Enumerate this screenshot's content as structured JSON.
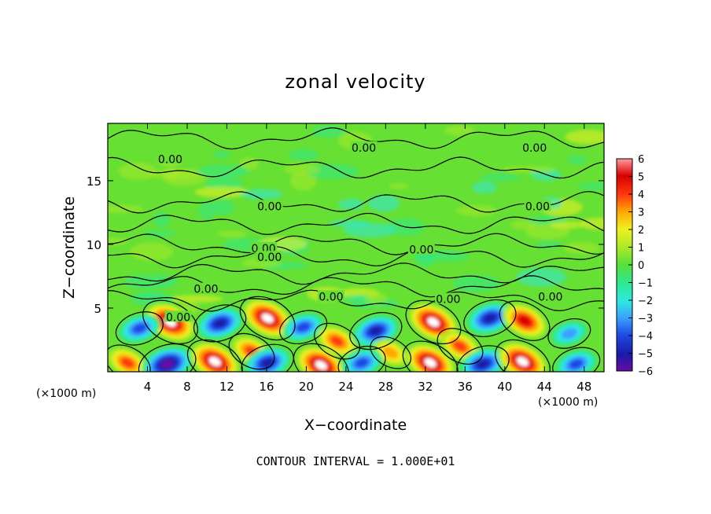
{
  "chart_data": {
    "type": "heatmap",
    "title": "zonal velocity",
    "xlabel": "X−coordinate",
    "ylabel": "Z−coordinate",
    "x_unit_left": "(×1000 m)",
    "x_unit_right": "(×1000 m)",
    "footer": "CONTOUR INTERVAL = 1.000E+01",
    "xlim": [
      0,
      50
    ],
    "ylim": [
      0,
      19.5
    ],
    "x_ticks": [
      4,
      8,
      12,
      16,
      20,
      24,
      28,
      32,
      36,
      40,
      44,
      48
    ],
    "y_ticks": [
      5,
      10,
      15
    ],
    "colorbar": {
      "range": [
        -6,
        6
      ],
      "ticks": [
        6,
        5,
        4,
        3,
        2,
        1,
        0,
        -1,
        -2,
        -3,
        -4,
        -5,
        -6
      ],
      "tick_labels": [
        "6",
        "5",
        "4",
        "3",
        "2",
        "1",
        "0",
        "−1",
        "−2",
        "−3",
        "−4",
        "−5",
        "−6"
      ]
    },
    "contour_labels": [
      {
        "text": "0.00",
        "x": 6.3,
        "z": 16.7
      },
      {
        "text": "0.00",
        "x": 25.8,
        "z": 17.6
      },
      {
        "text": "0.00",
        "x": 43.0,
        "z": 17.6
      },
      {
        "text": "0.00",
        "x": 16.3,
        "z": 13.0
      },
      {
        "text": "0.00",
        "x": 43.3,
        "z": 13.0
      },
      {
        "text": "0.00",
        "x": 15.7,
        "z": 9.7
      },
      {
        "text": "0.00",
        "x": 16.3,
        "z": 9.0
      },
      {
        "text": "0.00",
        "x": 31.6,
        "z": 9.6
      },
      {
        "text": "0.00",
        "x": 9.9,
        "z": 6.5
      },
      {
        "text": "0.00",
        "x": 22.5,
        "z": 5.9
      },
      {
        "text": "0.00",
        "x": 34.3,
        "z": 5.7
      },
      {
        "text": "0.00",
        "x": 44.6,
        "z": 5.9
      },
      {
        "text": "0.00",
        "x": 7.1,
        "z": 4.3
      }
    ],
    "strong_cells": [
      {
        "x": 6.3,
        "z": 3.9,
        "value": 6
      },
      {
        "x": 3.2,
        "z": 3.4,
        "value": -4
      },
      {
        "x": 11.3,
        "z": 3.8,
        "value": -5
      },
      {
        "x": 16.1,
        "z": 4.2,
        "value": 6
      },
      {
        "x": 19.7,
        "z": 3.5,
        "value": -4
      },
      {
        "x": 23.1,
        "z": 2.4,
        "value": 4
      },
      {
        "x": 27.0,
        "z": 3.2,
        "value": -5
      },
      {
        "x": 32.8,
        "z": 3.9,
        "value": 6
      },
      {
        "x": 38.5,
        "z": 4.2,
        "value": -5
      },
      {
        "x": 42.0,
        "z": 4.0,
        "value": 5
      },
      {
        "x": 46.5,
        "z": 3.0,
        "value": -3
      },
      {
        "x": 14.5,
        "z": 1.6,
        "value": 4
      },
      {
        "x": 28.5,
        "z": 1.5,
        "value": 3
      },
      {
        "x": 35.5,
        "z": 2.0,
        "value": 4
      },
      {
        "x": 2.0,
        "z": 0.7,
        "value": 4
      },
      {
        "x": 6.0,
        "z": 0.6,
        "value": -6
      },
      {
        "x": 10.8,
        "z": 0.8,
        "value": 6
      },
      {
        "x": 16.1,
        "z": 0.7,
        "value": -5
      },
      {
        "x": 21.5,
        "z": 0.5,
        "value": 6
      },
      {
        "x": 25.6,
        "z": 0.7,
        "value": -4
      },
      {
        "x": 32.5,
        "z": 0.7,
        "value": 6
      },
      {
        "x": 37.8,
        "z": 0.6,
        "value": -5
      },
      {
        "x": 41.8,
        "z": 0.8,
        "value": 6
      },
      {
        "x": 47.2,
        "z": 0.6,
        "value": -4
      }
    ],
    "zero_contours_z": [
      18.3,
      16.0,
      13.3,
      11.6,
      10.0,
      9.0,
      7.7,
      6.7,
      5.6
    ],
    "grid": false,
    "legend": "right"
  }
}
